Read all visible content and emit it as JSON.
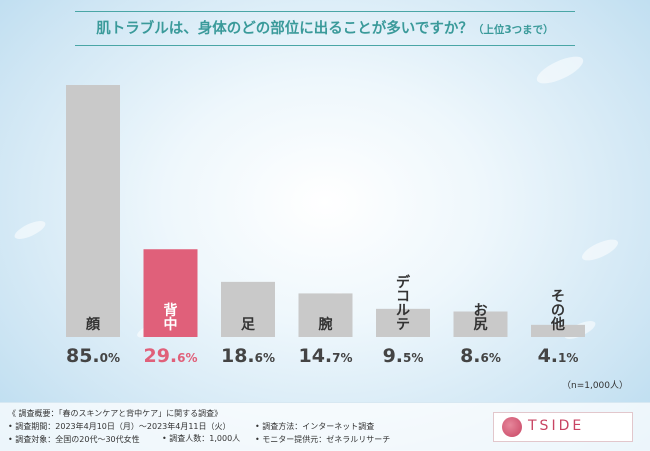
{
  "title": "肌トラブルは、身体のどの部位に出ることが多いですか？",
  "title_sub": "（上位3つまで）",
  "note": "（n=1,000人）",
  "chart_data": {
    "type": "bar",
    "categories": [
      "顔",
      "背中",
      "足",
      "腕",
      "デコルテ",
      "お尻",
      "その他"
    ],
    "values": [
      85.0,
      29.6,
      18.6,
      14.7,
      9.5,
      8.6,
      4.1
    ],
    "value_labels": [
      {
        "num": "85.",
        "dec": "0%"
      },
      {
        "num": "29.",
        "dec": "6%"
      },
      {
        "num": "18.",
        "dec": "6%"
      },
      {
        "num": "14.",
        "dec": "7%"
      },
      {
        "num": "9.",
        "dec": "5%"
      },
      {
        "num": "8.",
        "dec": "6%"
      },
      {
        "num": "4.",
        "dec": "1%"
      }
    ],
    "highlight_index": 1,
    "unit": "%",
    "ylim": [
      0,
      100
    ],
    "colors": {
      "bar": "#c9c9c9",
      "highlight": "#e0607a",
      "label": "#444444"
    }
  },
  "footer": {
    "survey": "《 調査概要：「春のスキンケアと背中ケア」に関する調査》",
    "period": "• 調査期間：2023年4月10日（月）〜2023年4月11日（火）",
    "method": "• 調査方法：インターネット調査",
    "target": "• 調査対象：全国の20代〜30代女性",
    "count": "• 調査人数：1,000人",
    "provider": "• モニター提供元：ゼネラルリサーチ"
  },
  "logo_text": "TSIDE"
}
